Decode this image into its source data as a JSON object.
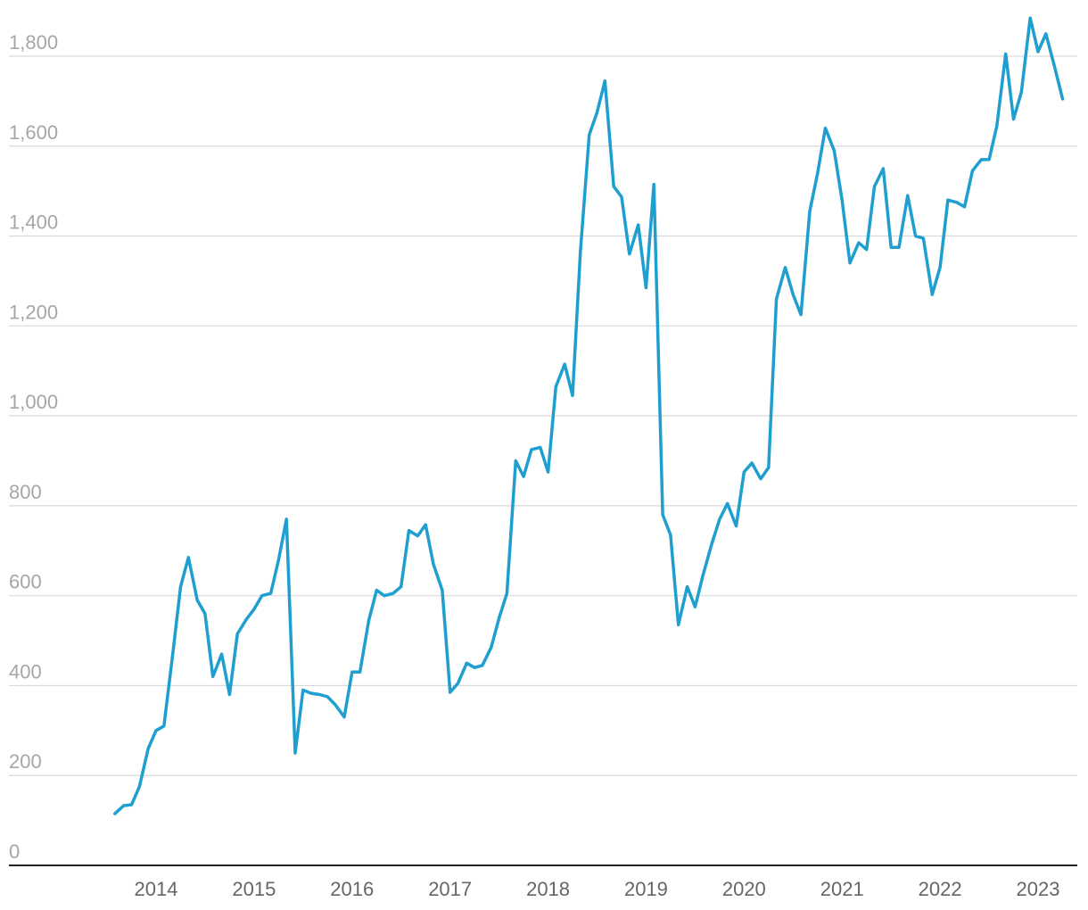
{
  "chart_data": {
    "type": "line",
    "title": "",
    "xlabel": "",
    "ylabel": "",
    "ylim": [
      0,
      1800
    ],
    "y_ticks": [
      {
        "value": 0,
        "label": "0"
      },
      {
        "value": 200,
        "label": "200"
      },
      {
        "value": 400,
        "label": "400"
      },
      {
        "value": 600,
        "label": "600"
      },
      {
        "value": 800,
        "label": "800"
      },
      {
        "value": 1000,
        "label": "1,000"
      },
      {
        "value": 1200,
        "label": "1,200"
      },
      {
        "value": 1400,
        "label": "1,400"
      },
      {
        "value": 1600,
        "label": "1,600"
      },
      {
        "value": 1800,
        "label": "1,800"
      }
    ],
    "x_ticks": [
      {
        "value": 2014,
        "label": "2014"
      },
      {
        "value": 2015,
        "label": "2015"
      },
      {
        "value": 2016,
        "label": "2016"
      },
      {
        "value": 2017,
        "label": "2017"
      },
      {
        "value": 2018,
        "label": "2018"
      },
      {
        "value": 2019,
        "label": "2019"
      },
      {
        "value": 2020,
        "label": "2020"
      },
      {
        "value": 2021,
        "label": "2021"
      },
      {
        "value": 2022,
        "label": "2022"
      },
      {
        "value": 2023,
        "label": "2023"
      }
    ],
    "xlim": [
      2013.13,
      2023.47
    ],
    "grid": true,
    "legend": "none",
    "color": "#1f9fcf",
    "series": [
      {
        "x": [
          2013.58,
          2013.67,
          2013.75,
          2013.83,
          2013.92,
          2014.0,
          2014.08,
          2014.17,
          2014.25,
          2014.33,
          2014.42,
          2014.5,
          2014.58,
          2014.67,
          2014.75,
          2014.83,
          2014.92,
          2015.0,
          2015.08,
          2015.17,
          2015.25,
          2015.33,
          2015.42,
          2015.5,
          2015.58,
          2015.67,
          2015.75,
          2015.83,
          2015.92,
          2016.0,
          2016.08,
          2016.17,
          2016.25,
          2016.33,
          2016.42,
          2016.5,
          2016.58,
          2016.67,
          2016.75,
          2016.83,
          2016.92,
          2017.0,
          2017.08,
          2017.17,
          2017.25,
          2017.33,
          2017.42,
          2017.5,
          2017.58,
          2017.67,
          2017.75,
          2017.83,
          2017.92,
          2018.0,
          2018.08,
          2018.17,
          2018.25,
          2018.33,
          2018.42,
          2018.5,
          2018.58,
          2018.67,
          2018.75,
          2018.83,
          2018.92,
          2019.0,
          2019.08,
          2019.17,
          2019.25,
          2019.33,
          2019.42,
          2019.5,
          2019.58,
          2019.67,
          2019.75,
          2019.83,
          2019.92,
          2020.0,
          2020.08,
          2020.17,
          2020.25,
          2020.33,
          2020.42,
          2020.5,
          2020.58,
          2020.67,
          2020.75,
          2020.83,
          2020.92,
          2021.0,
          2021.08,
          2021.17,
          2021.25,
          2021.33,
          2021.42,
          2021.5,
          2021.58,
          2021.67,
          2021.75,
          2021.83,
          2021.92,
          2022.0,
          2022.08,
          2022.17,
          2022.25,
          2022.33,
          2022.42,
          2022.5,
          2022.58,
          2022.67,
          2022.75,
          2022.83,
          2022.92,
          2023.0,
          2023.08,
          2023.17,
          2023.25
        ],
        "y": [
          115,
          133,
          135,
          175,
          260,
          300,
          310,
          470,
          620,
          685,
          590,
          560,
          420,
          470,
          380,
          515,
          547,
          570,
          600,
          605,
          680,
          770,
          250,
          390,
          383,
          380,
          375,
          357,
          330,
          430,
          430,
          545,
          612,
          600,
          605,
          620,
          745,
          733,
          758,
          670,
          612,
          385,
          405,
          450,
          440,
          445,
          485,
          550,
          605,
          900,
          865,
          925,
          930,
          875,
          1065,
          1115,
          1045,
          1365,
          1625,
          1675,
          1745,
          1510,
          1487,
          1360,
          1425,
          1285,
          1515,
          780,
          735,
          535,
          620,
          575,
          645,
          715,
          770,
          805,
          755,
          875,
          895,
          860,
          885,
          1260,
          1330,
          1270,
          1225,
          1455,
          1540,
          1640,
          1590,
          1480,
          1340,
          1385,
          1370,
          1510,
          1550,
          1375,
          1375,
          1490,
          1400,
          1395,
          1270,
          1330,
          1480,
          1475,
          1465,
          1545,
          1570,
          1570,
          1645,
          1805,
          1660,
          1720,
          1885,
          1810,
          1850,
          1775,
          1705
        ]
      }
    ]
  }
}
